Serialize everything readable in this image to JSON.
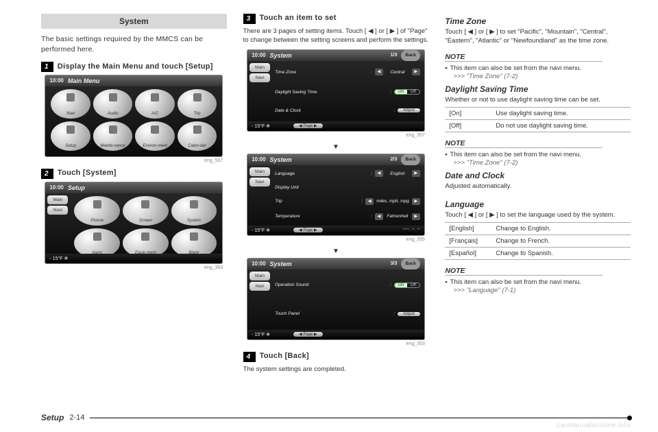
{
  "col1": {
    "header": "System",
    "intro": "The basic settings required by the MMCS can be performed here.",
    "step1_num": "1",
    "step1_text": "Display the Main Menu and touch [Setup]",
    "shot1": {
      "clock": "10:00",
      "title": "Main Menu",
      "icons": [
        "Navi",
        "Audio",
        "A/C",
        "Trip",
        "Setup",
        "Mainte-nance",
        "Environ-ment",
        "Calen-dar"
      ],
      "caption": "eng_507"
    },
    "step2_num": "2",
    "step2_text": "Touch [System]",
    "shot2": {
      "clock": "10:00",
      "title": "Setup",
      "side": [
        "Main",
        "Navi"
      ],
      "icons": [
        "Picture",
        "Screen",
        "System",
        "Alarm",
        "Equip-ment",
        "Blank"
      ],
      "temp": "- 15°F ❄",
      "caption": "eng_363"
    }
  },
  "col2": {
    "step3_num": "3",
    "step3_title": "Touch an item to set",
    "step3_body": "There are 3 pages of setting items. Touch [ ◀ ] or [ ▶ ] of \"Page\" to change between the setting screens and perform the settings.",
    "shotA": {
      "clock": "10:00",
      "title": "System",
      "page": "1/3",
      "back": "Back",
      "side": [
        "Main",
        "Navi"
      ],
      "rows": [
        {
          "lbl": "Time Zone",
          "type": "arrows",
          "val": "Central"
        },
        {
          "lbl": "Daylight Saving Time",
          "type": "toggle",
          "on": "On",
          "off": "Off"
        },
        {
          "lbl": "Date & Clock",
          "type": "adjust",
          "btn": "Adjust"
        }
      ],
      "temp": "- 15°F ❄",
      "pageflip": "◀  Page  ▶",
      "caption": "eng_357"
    },
    "shotB": {
      "clock": "10:00",
      "title": "System",
      "page": "2/3",
      "back": "Back",
      "side": [
        "Main",
        "Navi"
      ],
      "rows": [
        {
          "lbl": "Language",
          "type": "arrows",
          "val": "English"
        },
        {
          "lbl": "Display Unit",
          "type": "none"
        },
        {
          "lbl": "Trip",
          "type": "arrows",
          "val": "miles, mph, mpg"
        },
        {
          "lbl": "Temperature",
          "type": "arrows",
          "val": "Fahrenheit"
        }
      ],
      "temp": "- 15°F ❄",
      "pageflip": "◀  Page  ▶",
      "date": "****. **. **",
      "caption": "eng_355"
    },
    "shotC": {
      "clock": "10:00",
      "title": "System",
      "page": "3/3",
      "back": "Back",
      "side": [
        "Main",
        "Navi"
      ],
      "rows": [
        {
          "lbl": "Operation Sound",
          "type": "toggle",
          "on": "On",
          "off": "Off"
        },
        {
          "lbl": "Touch Panel",
          "type": "adjust",
          "btn": "Adjust"
        }
      ],
      "temp": "- 15°F ❄",
      "pageflip": "◀  Page  ▶",
      "caption": "eng_353"
    },
    "step4_num": "4",
    "step4_title": "Touch [Back]",
    "step4_body": "The system settings are completed."
  },
  "col3": {
    "tz_h": "Time Zone",
    "tz_body": "Touch [ ◀ ] or [ ▶ ] to set \"Pacific\", \"Mountain\", \"Central\", \"Eastern\", \"Atlantic\" or \"Newfoundland\" as the time zone.",
    "note": "NOTE",
    "note1_bullet": "This item can also be set from the navi menu.",
    "note1_ref": ">>> \"Time Zone\" (7-2)",
    "dst_h": "Daylight Saving Time",
    "dst_body": "Whether or not to use daylight saving time can be set.",
    "dst_rows": [
      [
        "[On]",
        "Use daylight saving time."
      ],
      [
        "[Off]",
        "Do not use daylight saving time."
      ]
    ],
    "note2_bullet": "This item can also be set from the navi menu.",
    "note2_ref": ">>> \"Time Zone\" (7-2)",
    "dc_h": "Date and Clock",
    "dc_body": "Adjusted automatically.",
    "lang_h": "Language",
    "lang_body": "Touch [ ◀ ] or [ ▶ ] to set the language used by the system.",
    "lang_rows": [
      [
        "[English]",
        "Change to English."
      ],
      [
        "[Français]",
        "Change to French."
      ],
      [
        "[Español]",
        "Change to Spanish."
      ]
    ],
    "note3_bullet": "This item can also be set from the navi menu.",
    "note3_ref": ">>> \"Language\" (7-1)"
  },
  "footer": {
    "label": "Setup",
    "page": "2-14"
  },
  "watermark": "carmanualsonline.info"
}
